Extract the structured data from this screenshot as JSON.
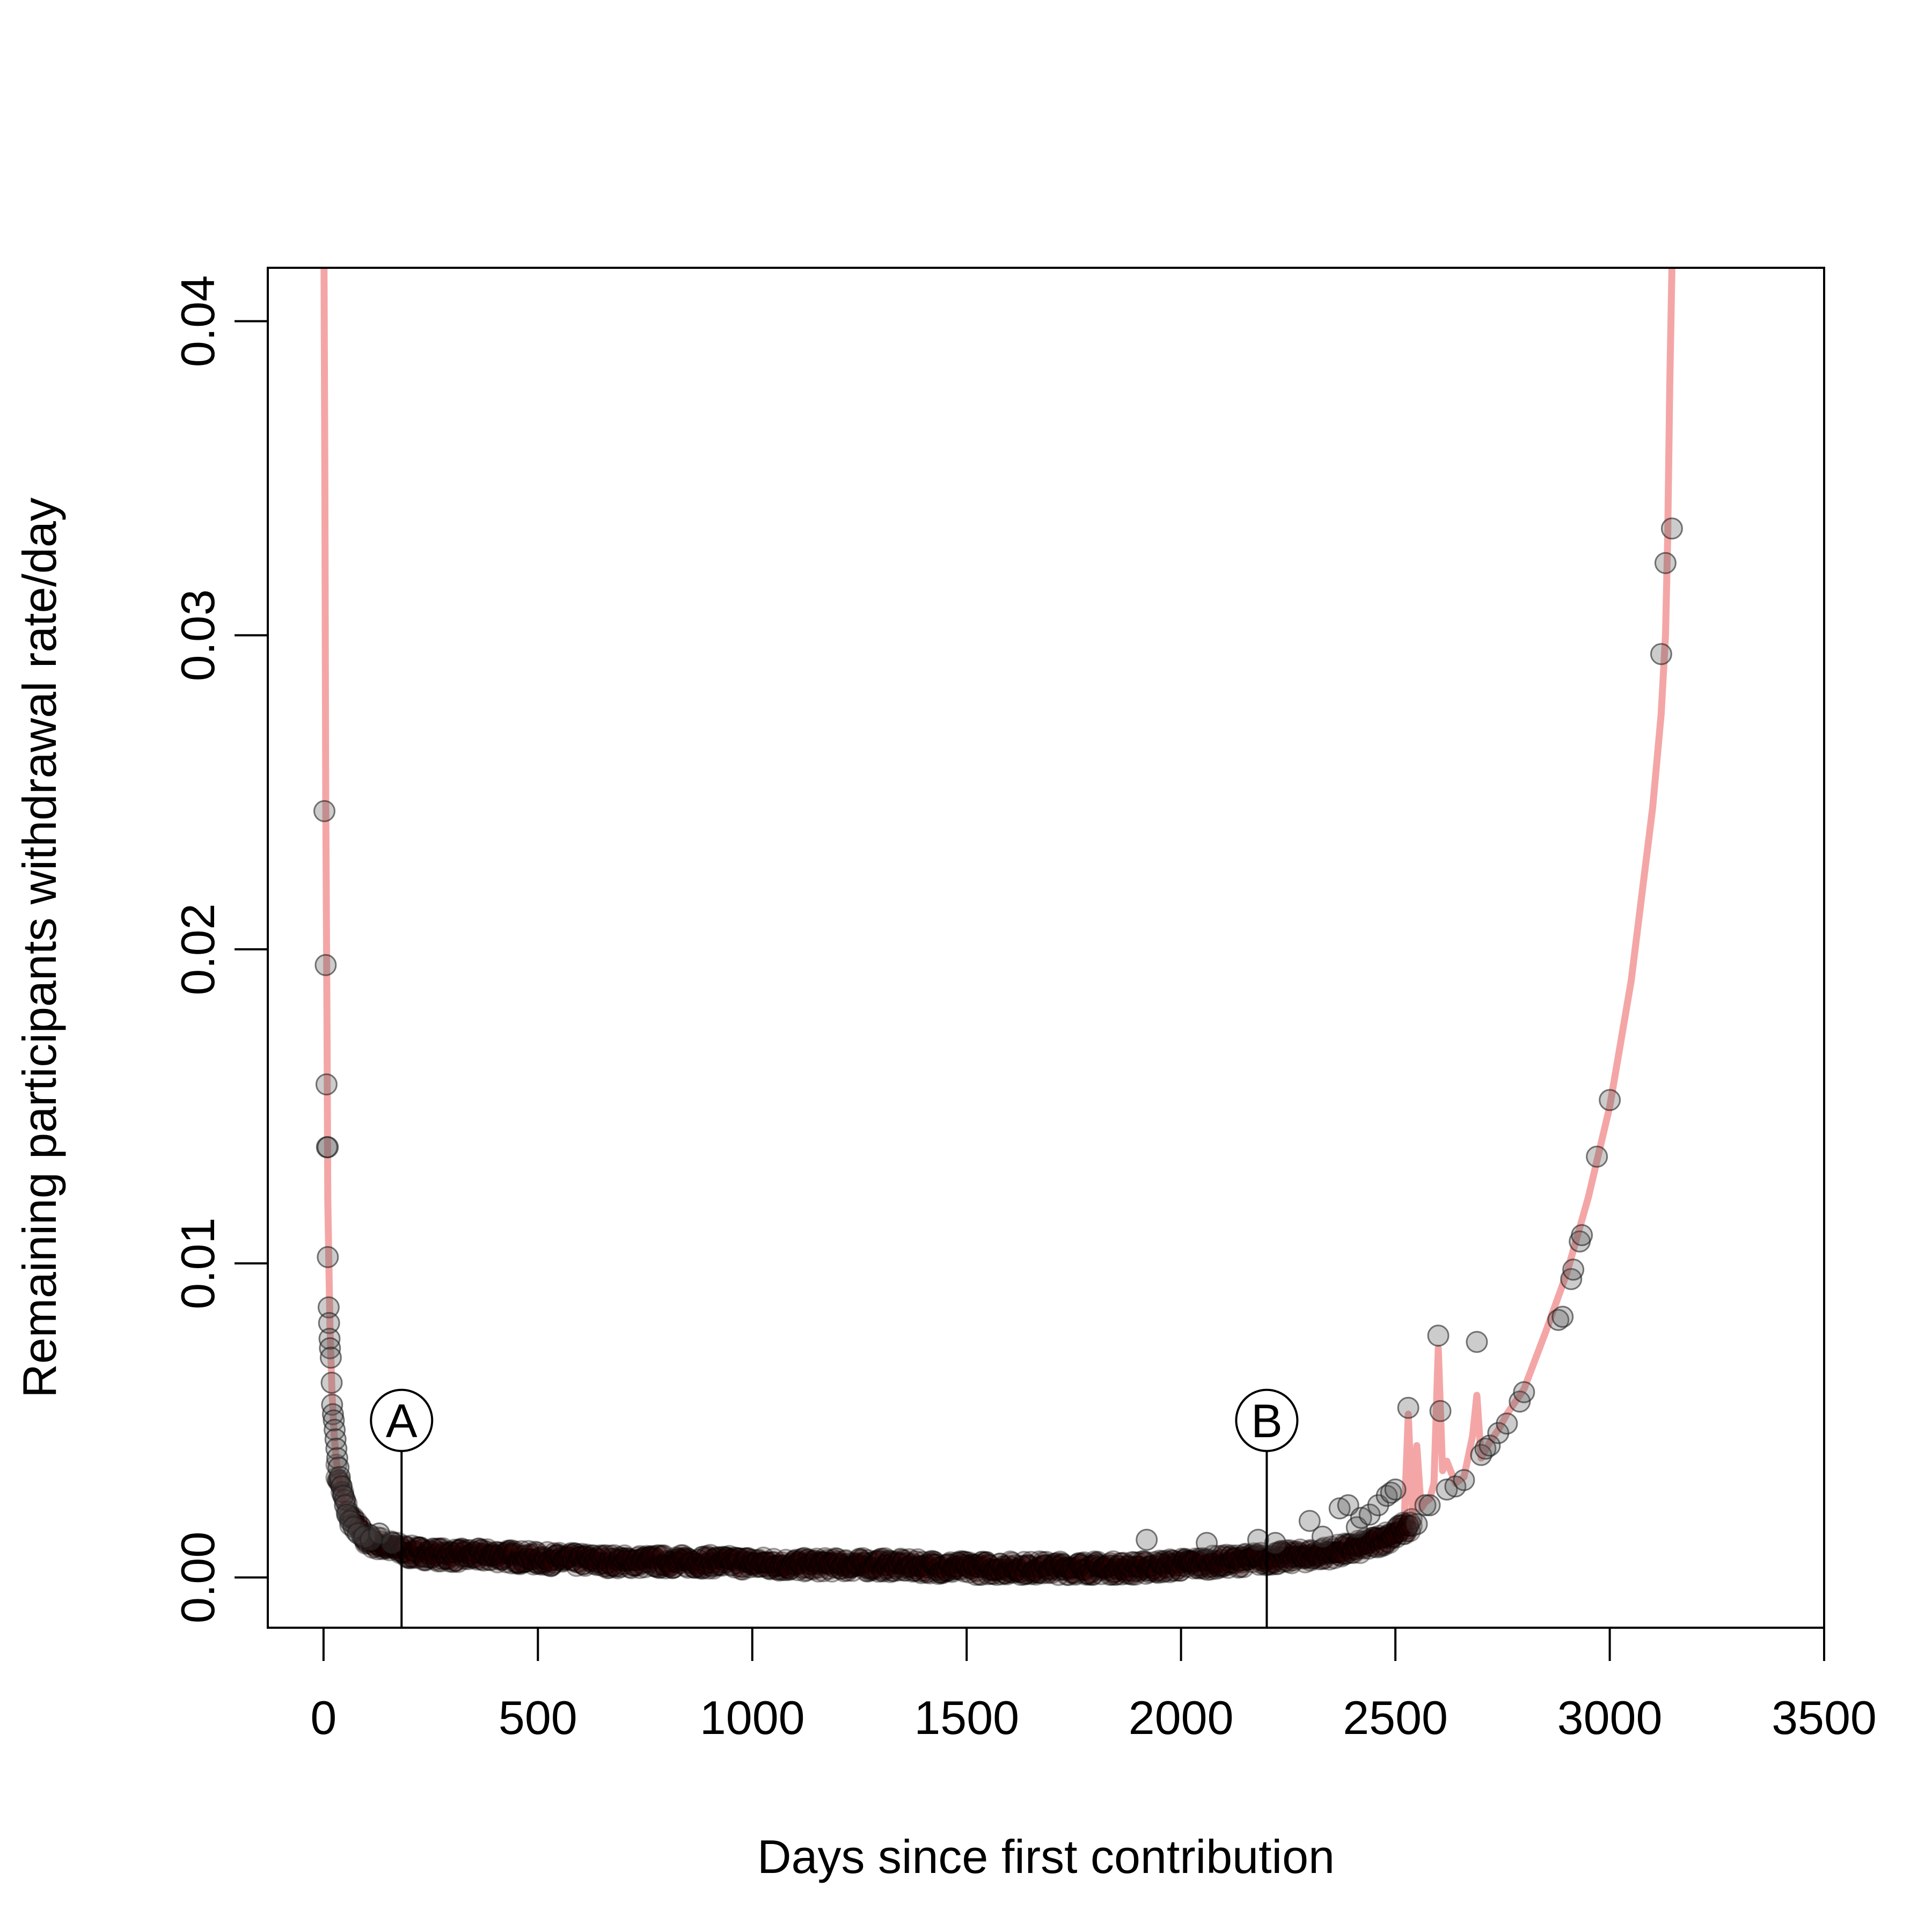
{
  "chart_data": {
    "type": "scatter",
    "title": "",
    "xlabel": "Days since first contribution",
    "ylabel": "Remaining participants withdrawal rate/day",
    "xlim": [
      -130,
      3500
    ],
    "ylim": [
      -0.0016,
      0.0417
    ],
    "xticks": [
      0,
      500,
      1000,
      1500,
      2000,
      2500,
      3000,
      3500
    ],
    "xtick_labels": [
      "0",
      "500",
      "1000",
      "1500",
      "2000",
      "2500",
      "3000",
      "3500"
    ],
    "yticks": [
      0,
      0.01,
      0.02,
      0.03,
      0.04
    ],
    "ytick_labels": [
      "0.00",
      "0.01",
      "0.02",
      "0.03",
      "0.04"
    ],
    "grid": false,
    "legend": "none",
    "colors": {
      "points": "#2a0000",
      "fit_line": "#f4a6a6",
      "axis": "#000000"
    },
    "annotations": [
      {
        "label": "A",
        "x": 182
      },
      {
        "label": "B",
        "x": 2200
      }
    ],
    "outlier_points": [
      [
        2,
        0.0244
      ],
      [
        5,
        0.0195
      ],
      [
        7,
        0.0157
      ],
      [
        8,
        0.0137
      ],
      [
        10,
        0.0137
      ],
      [
        10,
        0.0102
      ],
      [
        12,
        0.0086
      ],
      [
        13,
        0.0081
      ],
      [
        14,
        0.0076
      ],
      [
        15,
        0.0073
      ],
      [
        17,
        0.007
      ],
      [
        19,
        0.0062
      ],
      [
        20,
        0.0055
      ],
      [
        22,
        0.0052
      ],
      [
        24,
        0.005
      ],
      [
        26,
        0.0047
      ],
      [
        28,
        0.0044
      ],
      [
        30,
        0.0041
      ],
      [
        32,
        0.0038
      ],
      [
        35,
        0.0035
      ],
      [
        38,
        0.0032
      ],
      [
        42,
        0.0029
      ],
      [
        46,
        0.0026
      ],
      [
        50,
        0.0023
      ],
      [
        55,
        0.002
      ],
      [
        62,
        0.0018
      ],
      [
        70,
        0.0016
      ],
      [
        80,
        0.0014
      ],
      [
        95,
        0.0013
      ],
      [
        110,
        0.0012
      ],
      [
        130,
        0.0014
      ],
      [
        160,
        0.0011
      ],
      [
        1920,
        0.0012
      ],
      [
        2060,
        0.0011
      ],
      [
        2180,
        0.0012
      ],
      [
        2220,
        0.0011
      ],
      [
        2300,
        0.0018
      ],
      [
        2330,
        0.0013
      ],
      [
        2370,
        0.0022
      ],
      [
        2390,
        0.0023
      ],
      [
        2410,
        0.0016
      ],
      [
        2420,
        0.0019
      ],
      [
        2440,
        0.002
      ],
      [
        2460,
        0.0023
      ],
      [
        2480,
        0.0026
      ],
      [
        2490,
        0.0027
      ],
      [
        2500,
        0.0028
      ],
      [
        2530,
        0.0054
      ],
      [
        2550,
        0.0017
      ],
      [
        2570,
        0.0023
      ],
      [
        2580,
        0.0023
      ],
      [
        2600,
        0.0077
      ],
      [
        2605,
        0.0053
      ],
      [
        2620,
        0.0028
      ],
      [
        2640,
        0.0029
      ],
      [
        2660,
        0.0031
      ],
      [
        2690,
        0.0075
      ],
      [
        2700,
        0.0039
      ],
      [
        2710,
        0.0041
      ],
      [
        2720,
        0.0042
      ],
      [
        2740,
        0.0046
      ],
      [
        2760,
        0.0049
      ],
      [
        2790,
        0.0056
      ],
      [
        2800,
        0.0059
      ],
      [
        2880,
        0.0082
      ],
      [
        2890,
        0.0083
      ],
      [
        2910,
        0.0095
      ],
      [
        2915,
        0.0098
      ],
      [
        2930,
        0.0107
      ],
      [
        2935,
        0.0109
      ],
      [
        2970,
        0.0134
      ],
      [
        3000,
        0.0152
      ],
      [
        3120,
        0.0294
      ],
      [
        3130,
        0.0323
      ],
      [
        3145,
        0.0334
      ]
    ],
    "dense_band": {
      "x": [
        30,
        60,
        100,
        150,
        200,
        300,
        400,
        500,
        700,
        900,
        1100,
        1300,
        1500,
        1700,
        1900,
        2000,
        2100,
        2200,
        2300,
        2400,
        2450,
        2500,
        2540
      ],
      "y": [
        0.0034,
        0.0019,
        0.0012,
        0.001,
        0.0008,
        0.0007,
        0.0007,
        0.0006,
        0.0005,
        0.0005,
        0.0004,
        0.0004,
        0.0003,
        0.0003,
        0.0003,
        0.0004,
        0.0005,
        0.0006,
        0.0007,
        0.0009,
        0.0011,
        0.0014,
        0.0017
      ]
    },
    "fit_line": {
      "x": [
        1,
        3,
        5,
        8,
        10,
        15,
        20,
        25,
        30,
        40,
        50,
        60,
        70,
        80,
        100,
        130,
        150,
        200,
        300,
        400,
        500,
        700,
        1000,
        1300,
        1500,
        1800,
        2000,
        2200,
        2300,
        2400,
        2450,
        2500,
        2520,
        2530,
        2540,
        2550,
        2560,
        2570,
        2580,
        2590,
        2600,
        2610,
        2620,
        2640,
        2660,
        2680,
        2690,
        2700,
        2720,
        2740,
        2760,
        2800,
        2850,
        2900,
        2950,
        3000,
        3050,
        3100,
        3120,
        3130,
        3135,
        3140,
        3145
      ],
      "y": [
        0.042,
        0.035,
        0.025,
        0.018,
        0.012,
        0.008,
        0.0058,
        0.0045,
        0.0037,
        0.0028,
        0.0022,
        0.0018,
        0.0016,
        0.0014,
        0.0012,
        0.001,
        0.0009,
        0.0008,
        0.0007,
        0.0007,
        0.0006,
        0.0005,
        0.0004,
        0.0004,
        0.0003,
        0.0003,
        0.0004,
        0.0005,
        0.0007,
        0.0009,
        0.0011,
        0.0014,
        0.0016,
        0.0052,
        0.0018,
        0.0042,
        0.0022,
        0.0024,
        0.0025,
        0.003,
        0.0073,
        0.0034,
        0.0037,
        0.003,
        0.0032,
        0.0045,
        0.0058,
        0.0038,
        0.0043,
        0.0047,
        0.0052,
        0.006,
        0.0078,
        0.0097,
        0.0121,
        0.015,
        0.019,
        0.0245,
        0.0275,
        0.03,
        0.033,
        0.038,
        0.0417
      ]
    }
  }
}
